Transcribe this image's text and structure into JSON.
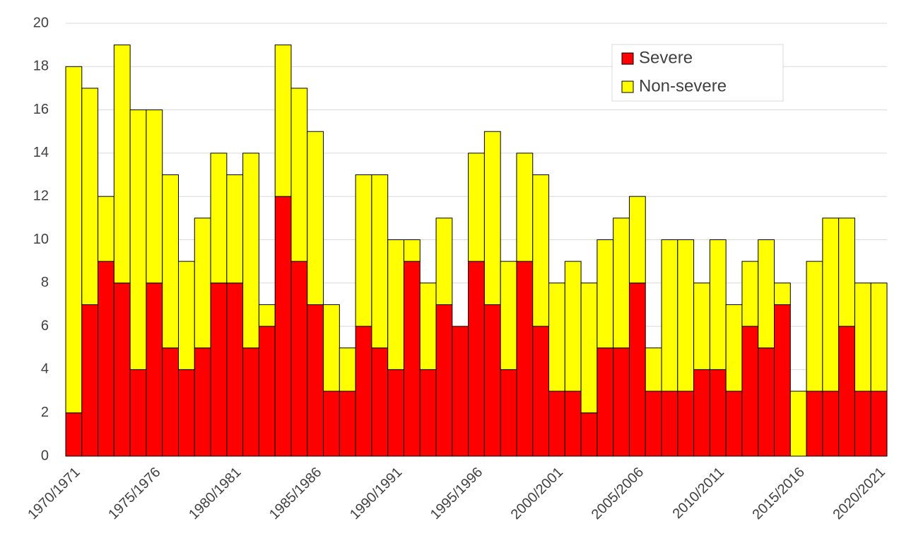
{
  "chart_data": {
    "type": "stacked_bar",
    "categories": [
      "1970/1971",
      null,
      null,
      null,
      null,
      "1975/1976",
      null,
      null,
      null,
      null,
      "1980/1981",
      null,
      null,
      null,
      null,
      "1985/1986",
      null,
      null,
      null,
      null,
      "1990/1991",
      null,
      null,
      null,
      null,
      "1995/1996",
      null,
      null,
      null,
      null,
      "2000/2001",
      null,
      null,
      null,
      null,
      "2005/2006",
      null,
      null,
      null,
      null,
      "2010/2011",
      null,
      null,
      null,
      null,
      "2015/2016",
      null,
      null,
      null,
      null,
      "2020/2021"
    ],
    "series": [
      {
        "name": "Severe",
        "color": "#ff0000",
        "values": [
          2,
          7,
          9,
          8,
          4,
          8,
          5,
          4,
          5,
          8,
          8,
          5,
          6,
          12,
          9,
          7,
          3,
          3,
          6,
          5,
          4,
          9,
          4,
          7,
          6,
          9,
          7,
          4,
          9,
          6,
          3,
          3,
          2,
          5,
          5,
          8,
          3,
          3,
          3,
          4,
          4,
          3,
          6,
          5,
          7,
          0,
          3,
          3,
          6,
          3,
          3
        ]
      },
      {
        "name": "Non-severe",
        "color": "#ffff00",
        "values": [
          16,
          10,
          3,
          11,
          12,
          8,
          8,
          5,
          6,
          6,
          5,
          9,
          1,
          7,
          8,
          8,
          4,
          2,
          7,
          8,
          6,
          1,
          4,
          4,
          0,
          5,
          8,
          5,
          5,
          7,
          5,
          6,
          6,
          5,
          6,
          4,
          2,
          7,
          7,
          4,
          6,
          4,
          3,
          5,
          1,
          3,
          6,
          8,
          5,
          5,
          5
        ]
      }
    ],
    "ylim": [
      0,
      20
    ],
    "yticks": [
      0,
      2,
      4,
      6,
      8,
      10,
      12,
      14,
      16,
      18,
      20
    ],
    "grid": true,
    "legend": "upper right"
  }
}
